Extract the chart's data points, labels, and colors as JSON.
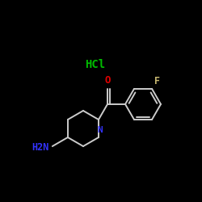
{
  "bg_color": "#000000",
  "bond_color": "#cccccc",
  "hcl_color": "#00bb00",
  "o_color": "#dd0000",
  "f_color": "#c8b870",
  "n_color": "#3333ff",
  "h2n_color": "#3333ff",
  "label_HCl": "HCl",
  "label_O": "O",
  "label_F": "F",
  "label_N": "N",
  "label_H2N": "H2N",
  "fig_width": 2.5,
  "fig_height": 2.5,
  "dpi": 100,
  "bond_lw": 1.4
}
